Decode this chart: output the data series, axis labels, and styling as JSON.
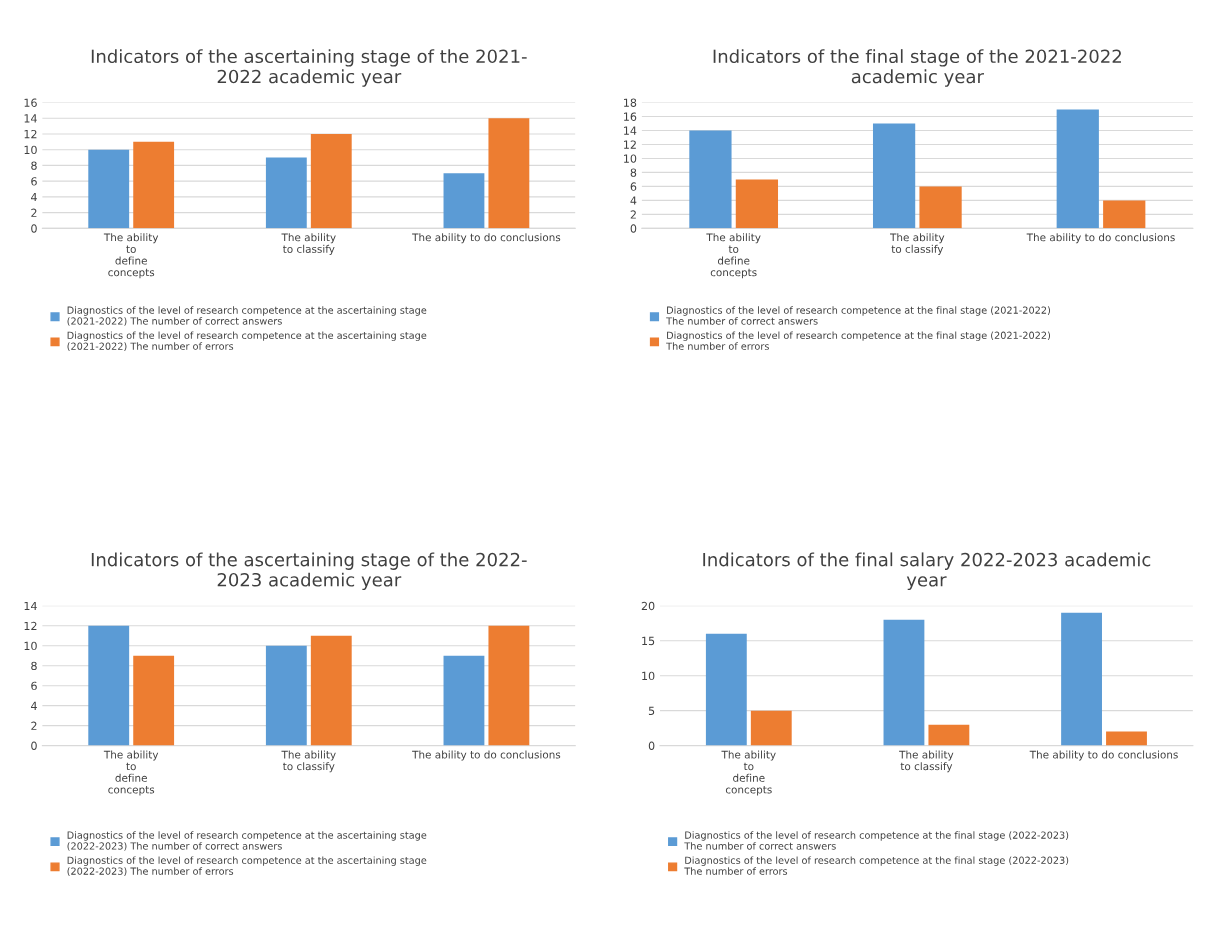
{
  "chart_data": [
    {
      "type": "bar",
      "title": "Indicators of the ascertaining stage of the 2021-\n2022 academic year",
      "categories": [
        "The ability\nto\ndefine\nconcepts",
        "The ability\nto classify",
        "The ability to do conclusions"
      ],
      "series": [
        {
          "name": "Diagnostics of the level of research competence at the ascertaining stage (2021-2022) The number of correct answers",
          "color": "#5b9bd5",
          "values": [
            10,
            9,
            7
          ]
        },
        {
          "name": "Diagnostics of the level of research competence at the ascertaining stage (2021-2022) The number of errors",
          "color": "#ed7d31",
          "values": [
            11,
            12,
            14
          ]
        }
      ],
      "ylim": [
        0,
        16
      ],
      "yticks": [
        0,
        2,
        4,
        6,
        8,
        10,
        12,
        14,
        16
      ],
      "grid": "y",
      "legend": "bottom"
    },
    {
      "type": "bar",
      "title": "Indicators of the final stage of the 2021-2022\nacademic year",
      "categories": [
        "The ability\nto\ndefine\nconcepts",
        "The ability\nto classify",
        "The ability to do conclusions"
      ],
      "series": [
        {
          "name": "Diagnostics of the level of research competence at the final stage (2021-2022) The number of correct answers",
          "color": "#5b9bd5",
          "values": [
            14,
            15,
            17
          ]
        },
        {
          "name": "Diagnostics of the level of research competence at the final stage (2021-2022) The number of errors",
          "color": "#ed7d31",
          "values": [
            7,
            6,
            4
          ]
        }
      ],
      "ylim": [
        0,
        18
      ],
      "yticks": [
        0,
        2,
        4,
        6,
        8,
        10,
        12,
        14,
        16,
        18
      ],
      "grid": "y",
      "legend": "bottom"
    },
    {
      "type": "bar",
      "title": "Indicators of the ascertaining stage of the 2022-\n2023 academic year",
      "categories": [
        "The ability\nto\ndefine\nconcepts",
        "The ability\nto classify",
        "The ability to do conclusions"
      ],
      "series": [
        {
          "name": "Diagnostics of the level of research competence at the ascertaining stage (2022-2023) The number of correct answers",
          "color": "#5b9bd5",
          "values": [
            12,
            10,
            9
          ]
        },
        {
          "name": "Diagnostics of the level of research competence at the ascertaining stage (2022-2023) The number of errors",
          "color": "#ed7d31",
          "values": [
            9,
            11,
            12
          ]
        }
      ],
      "ylim": [
        0,
        14
      ],
      "yticks": [
        0,
        2,
        4,
        6,
        8,
        10,
        12,
        14
      ],
      "grid": "y",
      "legend": "bottom"
    },
    {
      "type": "bar",
      "title": "Indicators of the final salary 2022-2023 academic\nyear",
      "categories": [
        "The ability\nto\ndefine\nconcepts",
        "The ability\nto classify",
        "The ability to do conclusions"
      ],
      "series": [
        {
          "name": "Diagnostics of the level of research competence at the final stage (2022-2023) The number of correct answers",
          "color": "#5b9bd5",
          "values": [
            16,
            18,
            19
          ]
        },
        {
          "name": "Diagnostics of the level of research competence at the final stage (2022-2023) The number of errors",
          "color": "#ed7d31",
          "values": [
            5,
            3,
            2
          ]
        }
      ],
      "ylim": [
        0,
        20
      ],
      "yticks": [
        0,
        5,
        10,
        15,
        20
      ],
      "grid": "y",
      "legend": "bottom"
    }
  ]
}
